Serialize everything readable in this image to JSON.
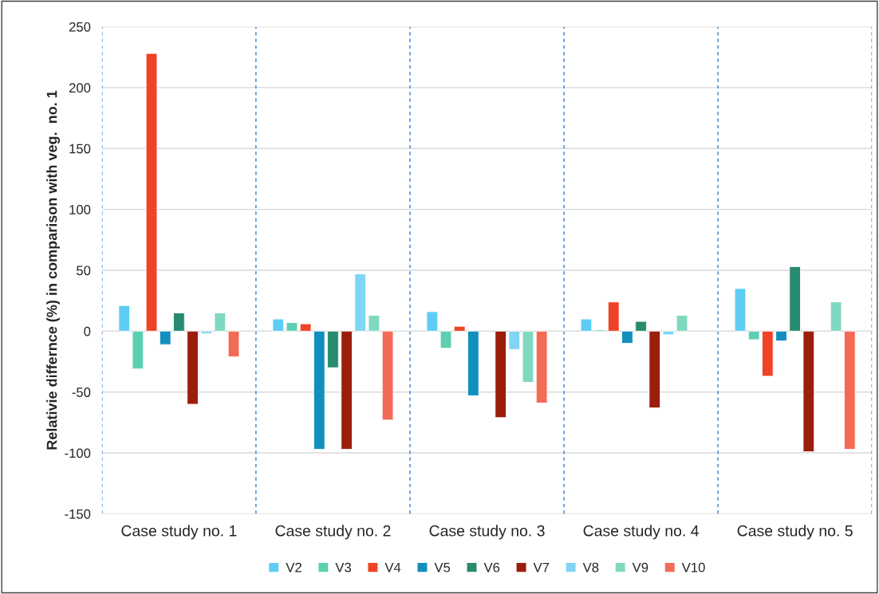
{
  "chart_data": {
    "type": "bar",
    "ylabel": "Relativie differnce (%) in comparison with veg.  no. 1",
    "categories": [
      "Case study no. 1",
      "Case study no. 2",
      "Case study no. 3",
      "Case study no. 4",
      "Case study no. 5"
    ],
    "series": [
      {
        "name": "V2",
        "color": "#5ecdf4",
        "values": [
          21,
          10,
          16,
          10,
          35
        ]
      },
      {
        "name": "V3",
        "color": "#5dcfb0",
        "values": [
          -31,
          7,
          -14,
          1,
          -7
        ]
      },
      {
        "name": "V4",
        "color": "#f04225",
        "values": [
          228,
          6,
          4,
          24,
          -37
        ]
      },
      {
        "name": "V5",
        "color": "#118fbd",
        "values": [
          -11,
          -97,
          -53,
          -10,
          -8
        ]
      },
      {
        "name": "V6",
        "color": "#288a6e",
        "values": [
          15,
          -30,
          null,
          8,
          53
        ]
      },
      {
        "name": "V7",
        "color": "#9b1d0b",
        "values": [
          -60,
          -97,
          -71,
          -63,
          -99
        ]
      },
      {
        "name": "V8",
        "color": "#7fd5f3",
        "values": [
          -2,
          47,
          -15,
          -3,
          null
        ]
      },
      {
        "name": "V9",
        "color": "#7fd9c0",
        "values": [
          15,
          13,
          -42,
          13,
          24
        ]
      },
      {
        "name": "V10",
        "color": "#f46b55",
        "values": [
          -21,
          -73,
          -59,
          null,
          -97
        ]
      }
    ],
    "ylim": [
      -150,
      250
    ],
    "yticks": [
      -150,
      -100,
      -50,
      0,
      50,
      100,
      150,
      200,
      250
    ],
    "grid": true,
    "legend": "bottom"
  }
}
